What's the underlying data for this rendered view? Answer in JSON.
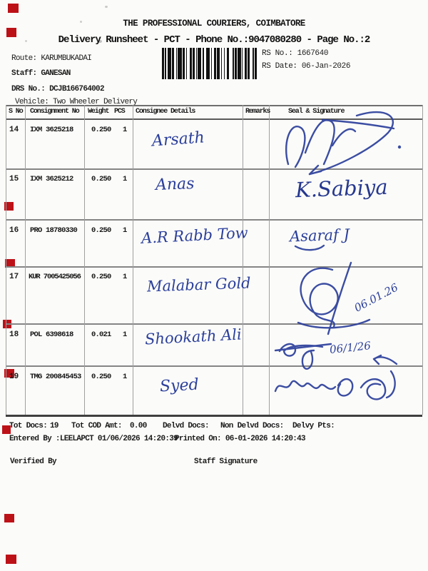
{
  "document": {
    "title": "THE PROFESSIONAL COURIERS, COIMBATORE",
    "subtitle": "Delivery Runsheet - PCT - Phone No.:9047080280 - Page No.:2",
    "info": {
      "route_label": "Route:",
      "route": "KARUMBUKADAI",
      "staff_label": "Staff:",
      "staff": "GANESAN",
      "drs_label": "DRS No.:",
      "drs": "DCJB166764002",
      "vehicle_label": "Vehicle:",
      "vehicle": "Two Wheeler Delivery"
    },
    "rs": {
      "no_label": "RS No.:",
      "no": "1667640",
      "date_label": "RS Date:",
      "date": "06-Jan-2026"
    },
    "table": {
      "headers": {
        "s_no": "S No",
        "consignment": "Consignment No",
        "weight": "Weight",
        "pcs": "PCS",
        "consignee": "Consignee Details",
        "remarks": "Remarks",
        "seal": "Seal & Signature"
      },
      "rows": [
        {
          "s_no": "14",
          "consignment": "IXM 3625218",
          "weight": "0.250",
          "pcs": "1",
          "consignee": "Arsath",
          "remarks": "",
          "signature": "illegible flourish signature"
        },
        {
          "s_no": "15",
          "consignment": "IXM 3625212",
          "weight": "0.250",
          "pcs": "1",
          "consignee": "Anas",
          "remarks": "",
          "signature": "K.Sabiya"
        },
        {
          "s_no": "16",
          "consignment": "PRO 18780330",
          "weight": "0.250",
          "pcs": "1",
          "consignee": "A.R Rabb Tow",
          "remarks": "",
          "signature": "Asaraf J"
        },
        {
          "s_no": "17",
          "consignment": "KUR 7005425056",
          "weight": "0.250",
          "pcs": "1",
          "consignee": "Malabar Gold",
          "remarks": "",
          "signature": "illegible signature",
          "signature_date": "06.01.26"
        },
        {
          "s_no": "18",
          "consignment": "POL 6398618",
          "weight": "0.021",
          "pcs": "1",
          "consignee": "Shookath Ali",
          "remarks": "",
          "signature": "illegible signature",
          "signature_date": "06/1/26"
        },
        {
          "s_no": "19",
          "consignment": "TMG 200845453",
          "weight": "0.250",
          "pcs": "1",
          "consignee": "Syed",
          "remarks": "",
          "signature": "signature in Tamil script"
        }
      ]
    },
    "footer": {
      "tot_docs_label": "Tot Docs:",
      "tot_docs": "19",
      "cod_label": "Tot COD Amt:",
      "cod": "0.00",
      "delvd_label": "Delvd Docs:",
      "non_delvd_label": "Non Delvd Docs:",
      "delvy_label": "Delvy Pts:",
      "entered": "Entered By :LEELAPCT 01/06/2026 14:20:39",
      "printed": "Printed On: 06-01-2026 14:20:43",
      "verified": "Verified By",
      "staff_sig": "Staff Signature"
    },
    "colors": {
      "ink": "#2b3f9b",
      "print": "#1c1c1c",
      "paper": "#fbfbf9",
      "red_mark": "#bd1118"
    }
  }
}
